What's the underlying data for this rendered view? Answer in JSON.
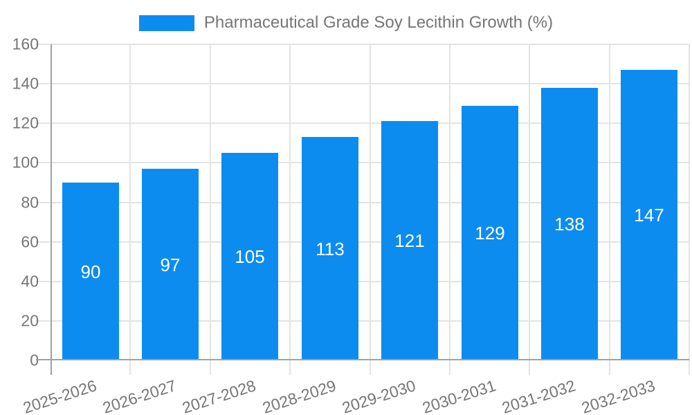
{
  "legend": {
    "label": "Pharmaceutical Grade Soy Lecithin Growth (%)"
  },
  "colors": {
    "bar": "#0d8cf0",
    "grid": "#e3e3e3",
    "axis": "#a0a0a0",
    "tick_text": "#757575",
    "value_label_text": "#ffffff",
    "background": "#ffffff"
  },
  "chart_data": {
    "type": "bar",
    "title": "Pharmaceutical Grade Soy Lecithin Growth (%)",
    "categories": [
      "2025-2026",
      "2026-2027",
      "2027-2028",
      "2028-2029",
      "2029-2030",
      "2030-2031",
      "2031-2032",
      "2032-2033"
    ],
    "values": [
      90,
      97,
      105,
      113,
      121,
      129,
      138,
      147
    ],
    "bar_labels": [
      "90",
      "97",
      "105",
      "113",
      "121",
      "129",
      "138",
      "147"
    ],
    "xlabel": "",
    "ylabel": "",
    "ylim": [
      0,
      160
    ],
    "yticks": [
      0,
      20,
      40,
      60,
      80,
      100,
      120,
      140,
      160
    ],
    "grid": true,
    "legend_position": "top-center",
    "bar_labels_position": "center"
  }
}
